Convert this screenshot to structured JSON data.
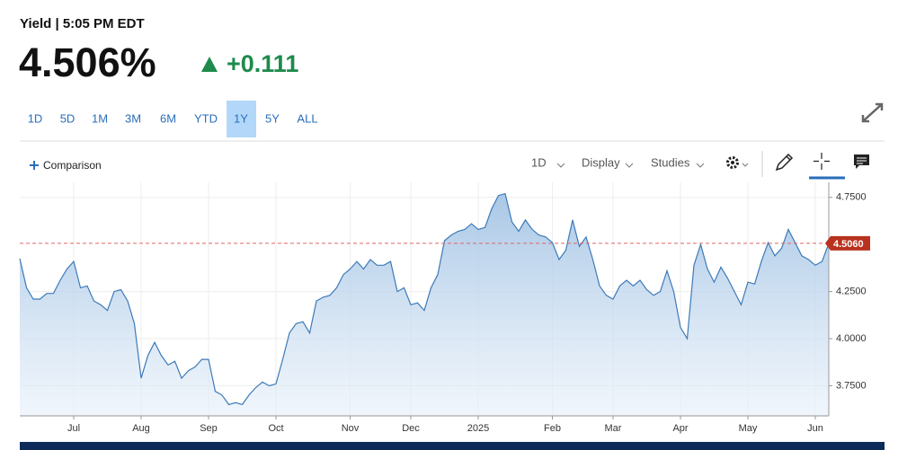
{
  "header": {
    "title": "Yield | 5:05 PM EDT",
    "last": "4.506%",
    "change": "+0.111"
  },
  "ranges": [
    "1D",
    "5D",
    "1M",
    "3M",
    "6M",
    "YTD",
    "1Y",
    "5Y",
    "ALL"
  ],
  "selected_range": 6,
  "toolbar": {
    "comparison": "Comparison",
    "interval": "1D",
    "display": "Display",
    "studies": "Studies"
  },
  "chart_data": {
    "type": "area",
    "color": "#3c7ab8",
    "grid": true,
    "ylim": [
      3.59,
      4.83
    ],
    "yticks": [
      {
        "value": 3.75,
        "label": "3.7500"
      },
      {
        "value": 4.0,
        "label": "4.0000"
      },
      {
        "value": 4.25,
        "label": "4.2500"
      },
      {
        "value": 4.75,
        "label": "4.7500"
      }
    ],
    "reference_line": {
      "value": 4.506,
      "label": "4.5060",
      "color": "#e06666"
    },
    "categories": [
      null,
      null,
      null,
      null,
      null,
      null,
      null,
      null,
      "Jul",
      null,
      null,
      null,
      null,
      null,
      null,
      null,
      null,
      null,
      "Aug",
      null,
      null,
      null,
      null,
      null,
      null,
      null,
      null,
      null,
      "Sep",
      null,
      null,
      null,
      null,
      null,
      null,
      null,
      null,
      null,
      "Oct",
      null,
      null,
      null,
      null,
      null,
      null,
      null,
      null,
      null,
      null,
      "Nov",
      null,
      null,
      null,
      null,
      null,
      null,
      null,
      null,
      "Dec",
      null,
      null,
      null,
      null,
      null,
      null,
      null,
      null,
      null,
      "2025",
      null,
      null,
      null,
      null,
      null,
      null,
      null,
      null,
      null,
      null,
      "Feb",
      null,
      null,
      null,
      null,
      null,
      null,
      null,
      null,
      "Mar",
      null,
      null,
      null,
      null,
      null,
      null,
      null,
      null,
      null,
      "Apr",
      null,
      null,
      null,
      null,
      null,
      null,
      null,
      null,
      null,
      "May",
      null,
      null,
      null,
      null,
      null,
      null,
      null,
      null,
      null,
      "Jun",
      null,
      null
    ],
    "values": [
      4.425,
      4.27,
      4.21,
      4.21,
      4.24,
      4.24,
      4.31,
      4.37,
      4.41,
      4.27,
      4.28,
      4.2,
      4.18,
      4.15,
      4.25,
      4.26,
      4.2,
      4.08,
      3.79,
      3.91,
      3.98,
      3.91,
      3.86,
      3.88,
      3.79,
      3.83,
      3.85,
      3.89,
      3.89,
      3.72,
      3.7,
      3.65,
      3.66,
      3.65,
      3.7,
      3.74,
      3.77,
      3.75,
      3.76,
      3.89,
      4.03,
      4.08,
      4.09,
      4.03,
      4.2,
      4.22,
      4.23,
      4.27,
      4.34,
      4.37,
      4.41,
      4.37,
      4.42,
      4.39,
      4.39,
      4.41,
      4.25,
      4.27,
      4.18,
      4.19,
      4.15,
      4.27,
      4.34,
      4.52,
      4.55,
      4.57,
      4.58,
      4.61,
      4.58,
      4.59,
      4.69,
      4.76,
      4.77,
      4.62,
      4.57,
      4.63,
      4.58,
      4.55,
      4.54,
      4.51,
      4.42,
      4.47,
      4.63,
      4.49,
      4.54,
      4.42,
      4.28,
      4.23,
      4.21,
      4.28,
      4.31,
      4.28,
      4.31,
      4.26,
      4.23,
      4.25,
      4.36,
      4.25,
      4.06,
      4.0,
      4.39,
      4.5,
      4.37,
      4.3,
      4.38,
      4.32,
      4.25,
      4.18,
      4.3,
      4.29,
      4.41,
      4.51,
      4.44,
      4.48,
      4.58,
      4.51,
      4.44,
      4.42,
      4.39,
      4.41,
      4.506
    ]
  }
}
